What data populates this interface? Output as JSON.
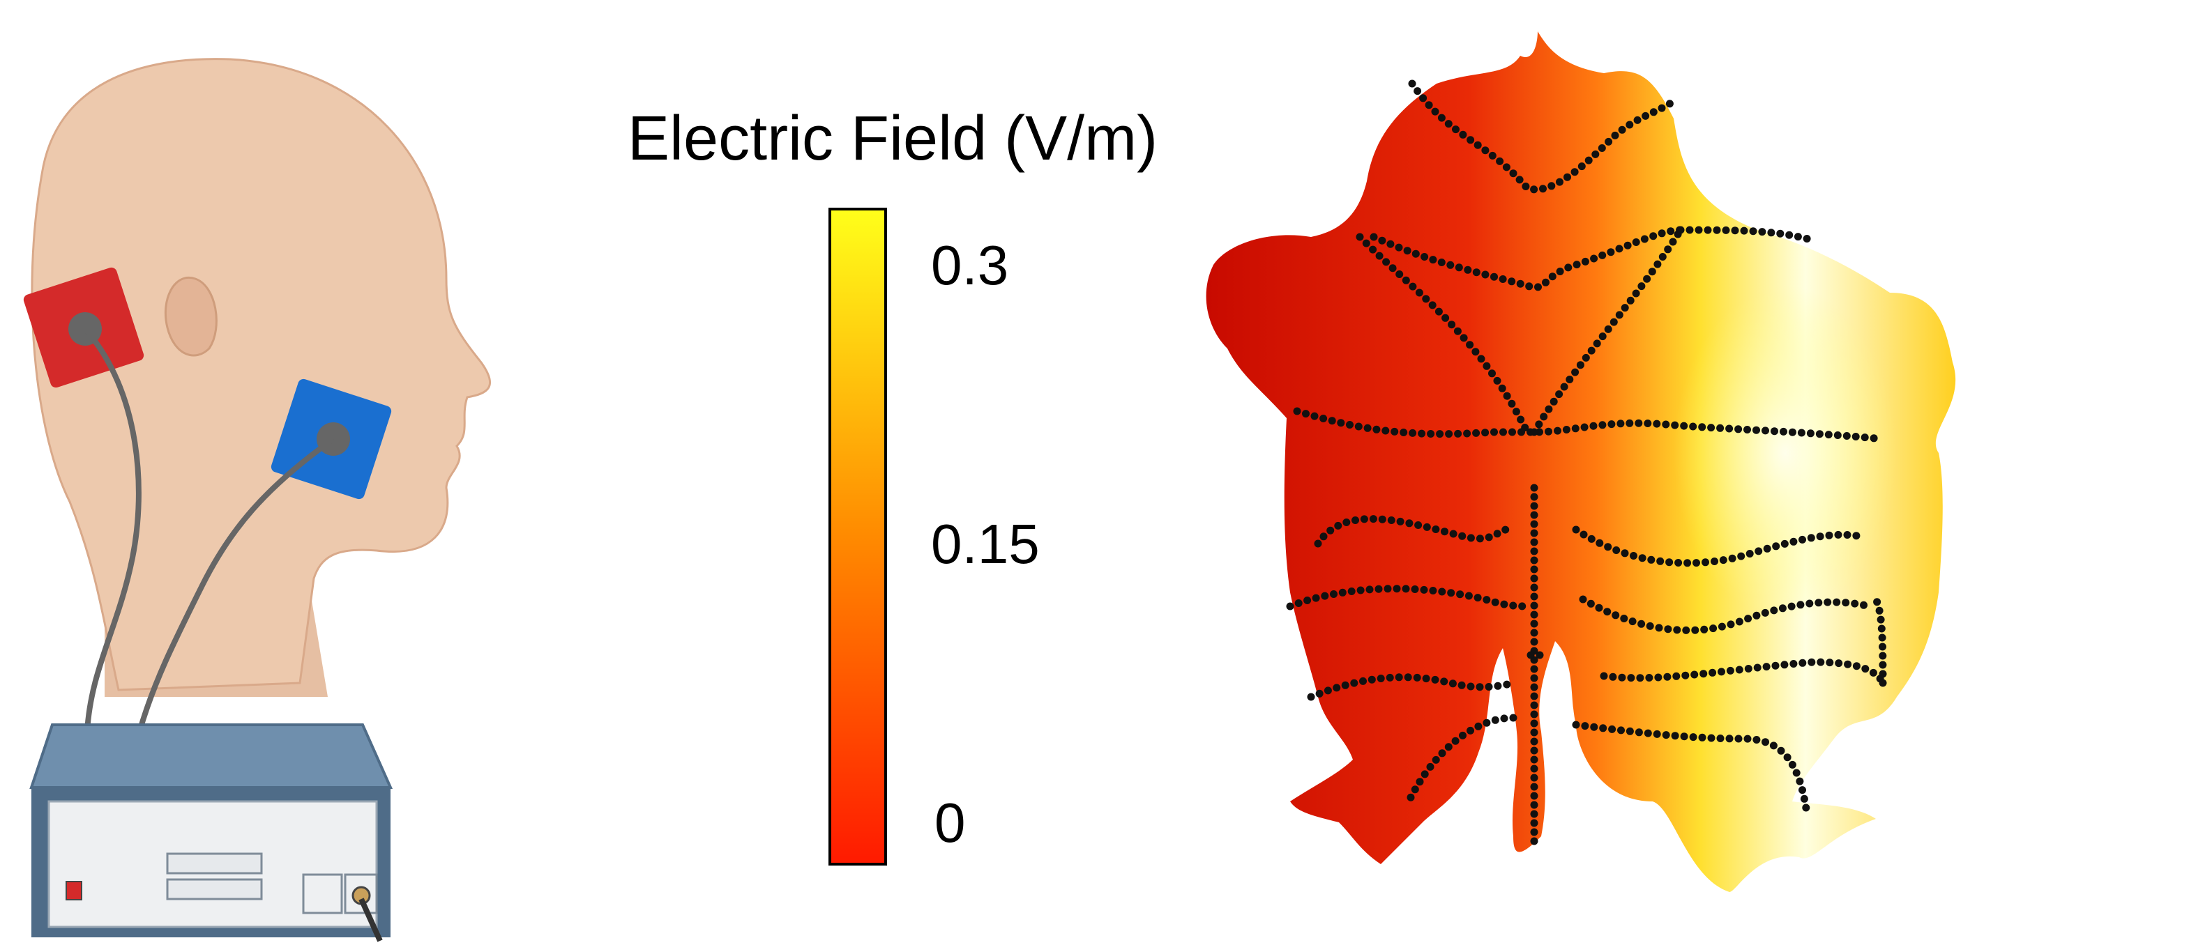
{
  "colorbar": {
    "title": "Electric Field (V/m)",
    "ticks": [
      "0.3",
      "0.15",
      "0"
    ],
    "colors": {
      "low": "#ff1a00",
      "mid": "#ff8a00",
      "high": "#ffff1a"
    }
  },
  "illustration": {
    "subject": "head-profile",
    "electrodes": [
      {
        "name": "anode-pad",
        "color": "#d42a2a"
      },
      {
        "name": "cathode-pad",
        "color": "#1a6fd0"
      }
    ],
    "device": "stimulator-box",
    "colors": {
      "skin": "#edc9ad",
      "device_top": "#6f8fad",
      "device_front": "#eef0f2"
    }
  },
  "flatmap": {
    "shape": "cerebellar-flatmap",
    "colors": {
      "dark": "#c80a00",
      "mid": "#ee3a0a",
      "bright": "#ffef30",
      "white": "#ffffe8",
      "dots": "#111111"
    }
  }
}
